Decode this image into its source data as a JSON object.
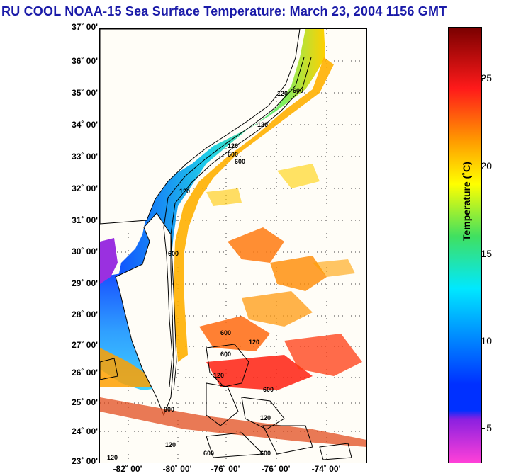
{
  "title": "RU COOL  NOAA-15  Sea Surface Temperature:  March 23, 2004 1156 GMT",
  "map": {
    "lat_labels": [
      "37˚ 00'",
      "36˚ 00'",
      "35˚ 00'",
      "34˚ 00'",
      "33˚ 00'",
      "32˚ 00'",
      "31˚ 00'",
      "30˚ 00'",
      "29˚ 00'",
      "28˚ 00'",
      "27˚ 00'",
      "26˚ 00'",
      "25˚ 00'",
      "24˚ 00'",
      "23˚ 00'"
    ],
    "lon_labels": [
      "-82˚ 00'",
      "-80˚ 00'",
      "-76˚ 00'",
      "-76˚ 00'",
      "-74˚ 00'"
    ],
    "contour_labels": [
      "120",
      "600",
      "120",
      "600",
      "120",
      "600",
      "120",
      "600",
      "600",
      "120",
      "120",
      "600",
      "600",
      "600",
      "120",
      "120",
      "600",
      "120",
      "600"
    ]
  },
  "colorbar": {
    "title": "Temperature (˚C)",
    "tick_labels": [
      "25",
      "20",
      "15",
      "10",
      "5"
    ],
    "colors": {
      "dark_red": "#7a0000",
      "red": "#ff1a1a",
      "orange": "#ff9a00",
      "yellow": "#ffff00",
      "green": "#40e060",
      "cyan": "#00e8ff",
      "blue": "#0030ff",
      "purple": "#8a20e0",
      "magenta": "#ff40d8",
      "land": "#fffdf7"
    }
  }
}
